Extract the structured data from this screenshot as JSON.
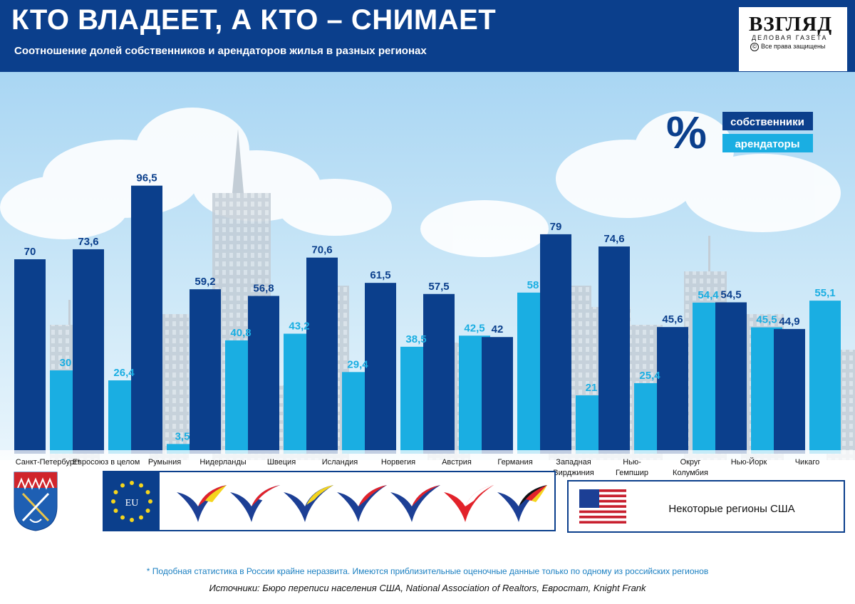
{
  "header": {
    "title": "КТО ВЛАДЕЕТ, А КТО – СНИМАЕТ",
    "subtitle": "Соотношение долей собственников и арендаторов жилья в разных регионах"
  },
  "logo": {
    "name": "ВЗГЛЯД",
    "tagline": "ДЕЛОВАЯ ГАЗЕТА",
    "rights_symbol": "©",
    "rights": "Все права защищены"
  },
  "legend": {
    "unit_symbol": "%",
    "owners_label": "собственники",
    "renters_label": "арендаторы"
  },
  "colors": {
    "header": "#0b3f8c",
    "owners": "#0b3f8c",
    "renters": "#1aaee2",
    "sky": "#bfe3f8",
    "buildings": "#c5cfd8"
  },
  "chart_data": {
    "type": "bar",
    "ylim": [
      0,
      100
    ],
    "grid": false,
    "legend_position": "top-right",
    "categories": [
      "Санкт-Петербург*",
      "Евросоюз в целом",
      "Румыния",
      "Нидерланды",
      "Швеция",
      "Исландия",
      "Норвегия",
      "Австрия",
      "Германия",
      "Западная Вирджиния",
      "Нью-Гемпшир",
      "Округ Колумбия",
      "Нью-Йорк",
      "Чикаго"
    ],
    "category_lines": [
      [
        "Санкт-Петербург*"
      ],
      [
        "Евросоюз в целом"
      ],
      [
        "Румыния"
      ],
      [
        "Нидерланды"
      ],
      [
        "Швеция"
      ],
      [
        "Исландия"
      ],
      [
        "Норвегия"
      ],
      [
        "Австрия"
      ],
      [
        "Германия"
      ],
      [
        "Западная",
        "Вирджиния"
      ],
      [
        "Нью-",
        "Гемпшир"
      ],
      [
        "Округ",
        "Колумбия"
      ],
      [
        "Нью-Йорк"
      ],
      [
        "Чикаго"
      ]
    ],
    "series": [
      {
        "name": "собственники",
        "values": [
          70,
          73.6,
          96.5,
          59.2,
          56.8,
          70.6,
          61.5,
          57.5,
          42,
          79,
          74.6,
          45.6,
          54.5,
          44.9
        ]
      },
      {
        "name": "арендаторы",
        "values": [
          30,
          26.4,
          3.5,
          40.8,
          43.2,
          29.4,
          38.5,
          42.5,
          58,
          21,
          25.4,
          54.4,
          45.5,
          55.1
        ]
      }
    ],
    "value_labels": {
      "owners": [
        "70",
        "73,6",
        "96,5",
        "59,2",
        "56,8",
        "70,6",
        "61,5",
        "57,5",
        "42",
        "79",
        "74,6",
        "45,6",
        "54,5",
        "44,9"
      ],
      "renters": [
        "30",
        "26,4",
        "3,5",
        "40,8",
        "43,2",
        "29,4",
        "38,5",
        "42,5",
        "58",
        "21",
        "25,4",
        "54,4",
        "45,5",
        "55,1"
      ]
    }
  },
  "panels": {
    "eu_flag_label": "EU",
    "us_label": "Некоторые регионы США"
  },
  "footnote": "* Подобная статистика в России крайне неразвита. Имеются приблизительные оценочные данные только по одному из российских регионов",
  "sources": "Источники: Бюро переписи населения США, National Association of Realtors, Евростат, Knight Frank"
}
